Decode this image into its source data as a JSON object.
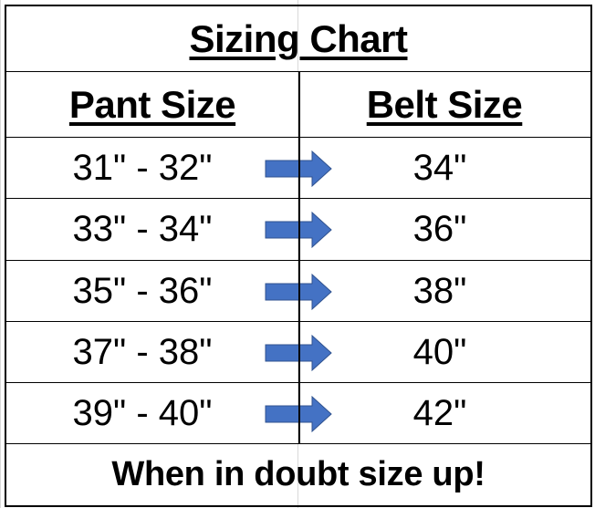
{
  "title": "Sizing Chart",
  "headers": {
    "pant": "Pant Size",
    "belt": "Belt Size"
  },
  "rows": [
    {
      "pant": "31\" - 32\"",
      "belt": "34\""
    },
    {
      "pant": "33\" - 34\"",
      "belt": "36\""
    },
    {
      "pant": "35\" - 36\"",
      "belt": "38\""
    },
    {
      "pant": "37\" - 38\"",
      "belt": "40\""
    },
    {
      "pant": "39\" - 40\"",
      "belt": "42\""
    }
  ],
  "footer": "When in doubt size up!",
  "colors": {
    "arrow_fill": "#4472C4",
    "arrow_outline": "#2F528F"
  },
  "icons": {
    "row_arrow": "right-arrow-icon"
  }
}
